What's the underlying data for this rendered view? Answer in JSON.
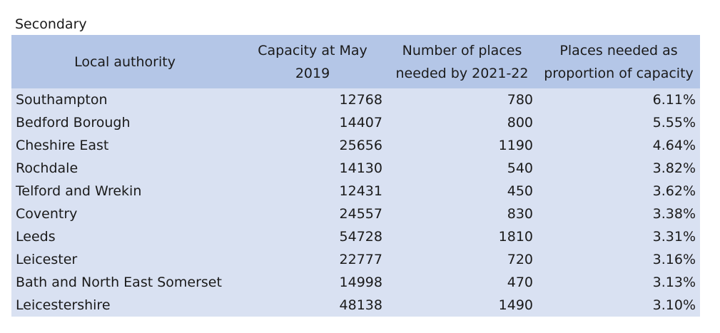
{
  "caption": "Secondary",
  "table": {
    "headers": [
      [
        "Local authority"
      ],
      [
        "Capacity at May",
        "2019"
      ],
      [
        "Number of places",
        "needed by 2021-22"
      ],
      [
        "Places needed as",
        "proportion of capacity"
      ]
    ],
    "rows": [
      [
        "Southampton",
        "12768",
        "780",
        "6.11%"
      ],
      [
        "Bedford Borough",
        "14407",
        "800",
        "5.55%"
      ],
      [
        "Cheshire East",
        "25656",
        "1190",
        "4.64%"
      ],
      [
        "Rochdale",
        "14130",
        "540",
        "3.82%"
      ],
      [
        "Telford and Wrekin",
        "12431",
        "450",
        "3.62%"
      ],
      [
        "Coventry",
        "24557",
        "830",
        "3.38%"
      ],
      [
        "Leeds",
        "54728",
        "1810",
        "3.31%"
      ],
      [
        "Leicester",
        "22777",
        "720",
        "3.16%"
      ],
      [
        "Bath and North East Somerset",
        "14998",
        "470",
        "3.13%"
      ],
      [
        "Leicestershire",
        "48138",
        "1490",
        "3.10%"
      ]
    ]
  },
  "colors": {
    "header_fill": "#b4c6e7",
    "body_fill": "#d9e1f2"
  }
}
